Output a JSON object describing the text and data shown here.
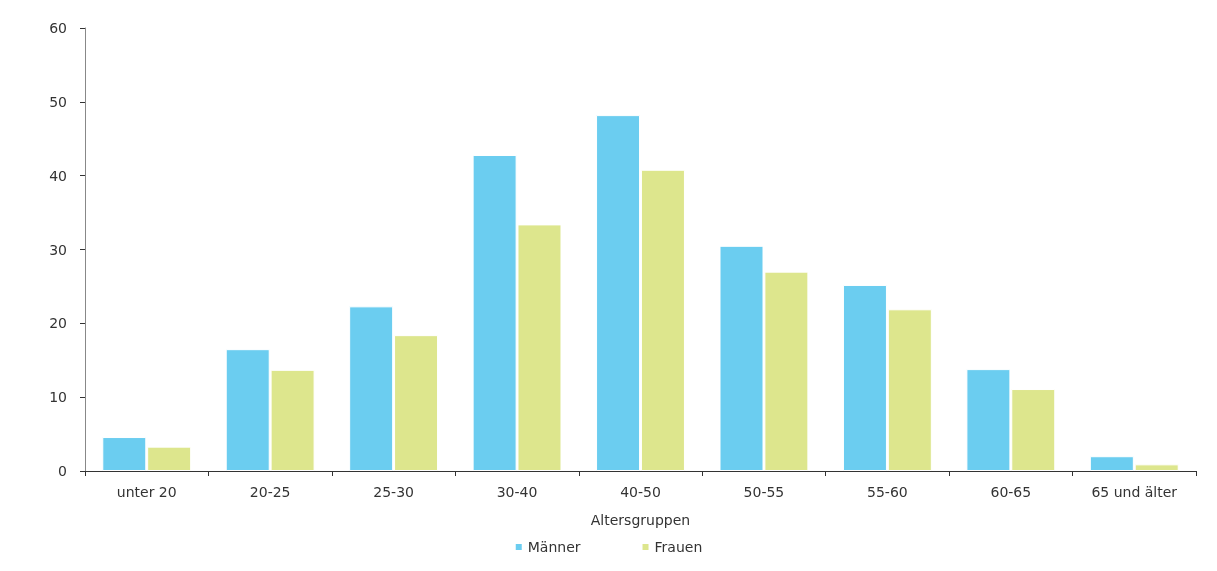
{
  "chart_data": {
    "type": "bar",
    "xlabel": "Altersgruppen",
    "categories": [
      "unter 20",
      "20-25",
      "25-30",
      "30-40",
      "40-50",
      "50-55",
      "55-60",
      "60-65",
      "65 und älter"
    ],
    "series": [
      {
        "name": "Männer",
        "color": "#6bcdf0",
        "values": [
          4.6,
          16.5,
          22.3,
          42.8,
          48.2,
          30.5,
          25.2,
          13.8,
          2.0
        ]
      },
      {
        "name": "Frauen",
        "color": "#dde68d",
        "values": [
          3.3,
          13.7,
          18.4,
          33.4,
          40.8,
          27.0,
          21.9,
          11.1,
          0.9
        ]
      }
    ],
    "ylim": [
      0,
      60
    ],
    "yticks": [
      0,
      10,
      20,
      30,
      40,
      50,
      60
    ],
    "grid": false,
    "legend": "bottom"
  }
}
